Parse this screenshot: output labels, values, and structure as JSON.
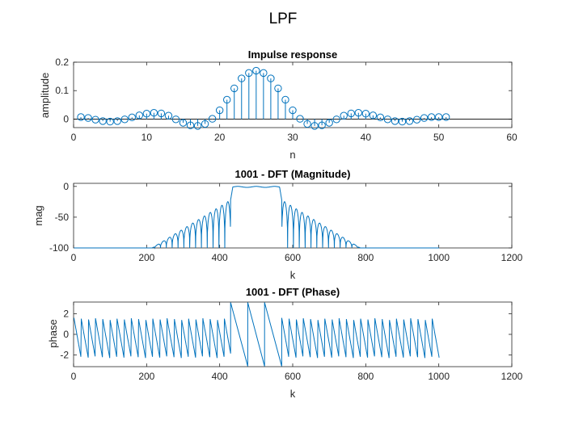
{
  "figure": {
    "title": "LPF",
    "colors": {
      "series": "#0072BD",
      "axes": "#262626",
      "background": "#ffffff"
    }
  },
  "chart_data": [
    {
      "id": "impulse",
      "type": "stem",
      "title": "Impulse response",
      "xlabel": "n",
      "ylabel": "amplitude",
      "xlim": [
        0,
        60
      ],
      "ylim": [
        -0.03,
        0.2
      ],
      "xticks": [
        "0",
        "10",
        "20",
        "30",
        "40",
        "50",
        "60"
      ],
      "yticks": [
        "0",
        "0.1",
        "0.2"
      ],
      "baseline": 0,
      "marker": "circle",
      "series": [
        {
          "x": [
            1,
            2,
            3,
            4,
            5,
            6,
            7,
            8,
            9,
            10,
            11,
            12,
            13,
            14,
            15,
            16,
            17,
            18,
            19,
            20,
            21,
            22,
            23,
            24,
            25,
            26,
            27,
            28,
            29,
            30,
            31,
            32,
            33,
            34,
            35,
            36,
            37,
            38,
            39,
            40,
            41,
            42,
            43,
            44,
            45,
            46,
            47,
            48,
            49,
            50,
            51
          ],
          "values": [
            0.007,
            0.004,
            -0.002,
            -0.007,
            -0.009,
            -0.007,
            -0.001,
            0.006,
            0.013,
            0.019,
            0.022,
            0.02,
            0.012,
            -0.001,
            -0.013,
            -0.022,
            -0.024,
            -0.017,
            0.001,
            0.031,
            0.068,
            0.108,
            0.143,
            0.162,
            0.17,
            0.162,
            0.143,
            0.108,
            0.068,
            0.031,
            0.001,
            -0.017,
            -0.024,
            -0.022,
            -0.013,
            -0.001,
            0.012,
            0.02,
            0.022,
            0.019,
            0.013,
            0.006,
            -0.001,
            -0.007,
            -0.009,
            -0.007,
            -0.002,
            0.004,
            0.007,
            0.007,
            0.007
          ]
        }
      ]
    },
    {
      "id": "magnitude",
      "type": "line",
      "title": "1001 - DFT (Magnitude)",
      "xlabel": "k",
      "ylabel": "mag",
      "xlim": [
        0,
        1200
      ],
      "ylim": [
        -100,
        5
      ],
      "xticks": [
        "0",
        "200",
        "400",
        "600",
        "800",
        "1000",
        "1200"
      ],
      "yticks": [
        "-100",
        "-50",
        "0"
      ],
      "x_range": [
        1,
        1001
      ],
      "passband": [
        430,
        570
      ],
      "stopband_peak_near_edge": -22,
      "stopband_floor": -100,
      "ripple_period": 16
    },
    {
      "id": "phase",
      "type": "line",
      "title": "1001 - DFT (Phase)",
      "xlabel": "k",
      "ylabel": "phase",
      "xlim": [
        0,
        1200
      ],
      "ylim": [
        -3.14,
        3.14
      ],
      "xticks": [
        "0",
        "200",
        "400",
        "600",
        "800",
        "1000",
        "1200"
      ],
      "yticks": [
        "-2",
        "0",
        "2"
      ],
      "x_range": [
        1,
        1001
      ],
      "stopband_sawtooth": {
        "period": 19.6,
        "min": -2.3,
        "max": 1.6
      },
      "passband_range": [
        430,
        570
      ],
      "passband_wraps": [
        430,
        477,
        523,
        570
      ]
    }
  ]
}
